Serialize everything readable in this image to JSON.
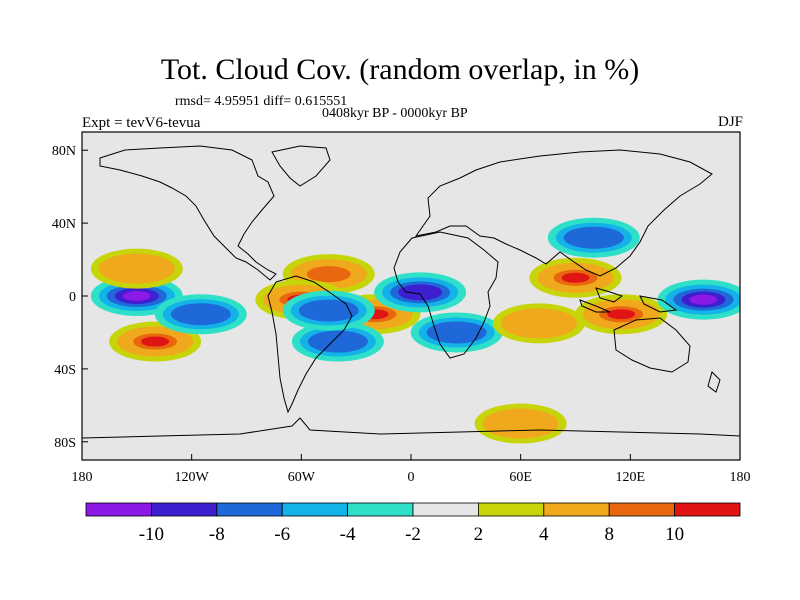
{
  "title": "Tot. Cloud Cov. (random overlap, in %)",
  "stats_line": "rmsd= 4.95951 diff= 0.615551",
  "period_line": "0408kyr BP - 0000kyr BP",
  "experiment_label": "Expt = tevV6-tevua",
  "season_label": "DJF",
  "y_axis_ticks": [
    "80N",
    "40N",
    "0",
    "40S",
    "80S"
  ],
  "x_axis_ticks": [
    "180",
    "120W",
    "60W",
    "0",
    "60E",
    "120E",
    "180"
  ],
  "colorbar": {
    "colors": [
      "#8c1ae6",
      "#3e1fcf",
      "#1f68d9",
      "#13b2e8",
      "#2ee0c8",
      "#e6e6e6",
      "#c8d40a",
      "#f0a81c",
      "#e8670f",
      "#e01414"
    ],
    "labels": [
      "-10",
      "-8",
      "-6",
      "-4",
      "-2",
      "2",
      "4",
      "8",
      "10"
    ]
  },
  "chart_data": {
    "type": "heatmap",
    "title": "Tot. Cloud Cov. (random overlap, in %)",
    "subtitle": "0408kyr BP - 0000kyr BP",
    "variable_units": "%",
    "levels": [
      -10,
      -8,
      -6,
      -4,
      -2,
      2,
      4,
      8,
      10
    ],
    "x_ticks": [
      "180",
      "120W",
      "60W",
      "0",
      "60E",
      "120E",
      "180"
    ],
    "y_ticks": [
      "80N",
      "40N",
      "0",
      "40S",
      "80S"
    ],
    "xlim": [
      -180,
      180
    ],
    "ylim": [
      -90,
      90
    ],
    "background_level": "-2 to 2",
    "anomaly_regions": [
      {
        "name": "equatorial east Pacific",
        "lon": -150,
        "lat": 0,
        "value": -11
      },
      {
        "name": "south-east Pacific band",
        "lon": -140,
        "lat": -25,
        "value": 11
      },
      {
        "name": "tropical south-east Pacific",
        "lon": -115,
        "lat": -10,
        "value": -7
      },
      {
        "name": "north-east Pacific",
        "lon": -150,
        "lat": 15,
        "value": 6
      },
      {
        "name": "North Atlantic",
        "lon": -45,
        "lat": 12,
        "value": 9
      },
      {
        "name": "tropical South Atlantic",
        "lon": -20,
        "lat": -10,
        "value": 10
      },
      {
        "name": "south-west Atlantic",
        "lon": -40,
        "lat": -25,
        "value": -8
      },
      {
        "name": "northern Amazon",
        "lon": -60,
        "lat": -2,
        "value": 10
      },
      {
        "name": "north Brazil",
        "lon": -45,
        "lat": -8,
        "value": -7
      },
      {
        "name": "Gulf of Guinea",
        "lon": 5,
        "lat": 2,
        "value": -9
      },
      {
        "name": "southern Africa",
        "lon": 25,
        "lat": -20,
        "value": -7
      },
      {
        "name": "central Indian Ocean",
        "lon": 70,
        "lat": -15,
        "value": 6
      },
      {
        "name": "Bay of Bengal",
        "lon": 90,
        "lat": 10,
        "value": 11
      },
      {
        "name": "maritime continent south",
        "lon": 115,
        "lat": -10,
        "value": 11
      },
      {
        "name": "east Asia",
        "lon": 100,
        "lat": 32,
        "value": -7
      },
      {
        "name": "western equatorial Pacific",
        "lon": 160,
        "lat": -2,
        "value": -11
      },
      {
        "name": "Southern Ocean",
        "lon": 60,
        "lat": -70,
        "value": 6
      }
    ]
  }
}
